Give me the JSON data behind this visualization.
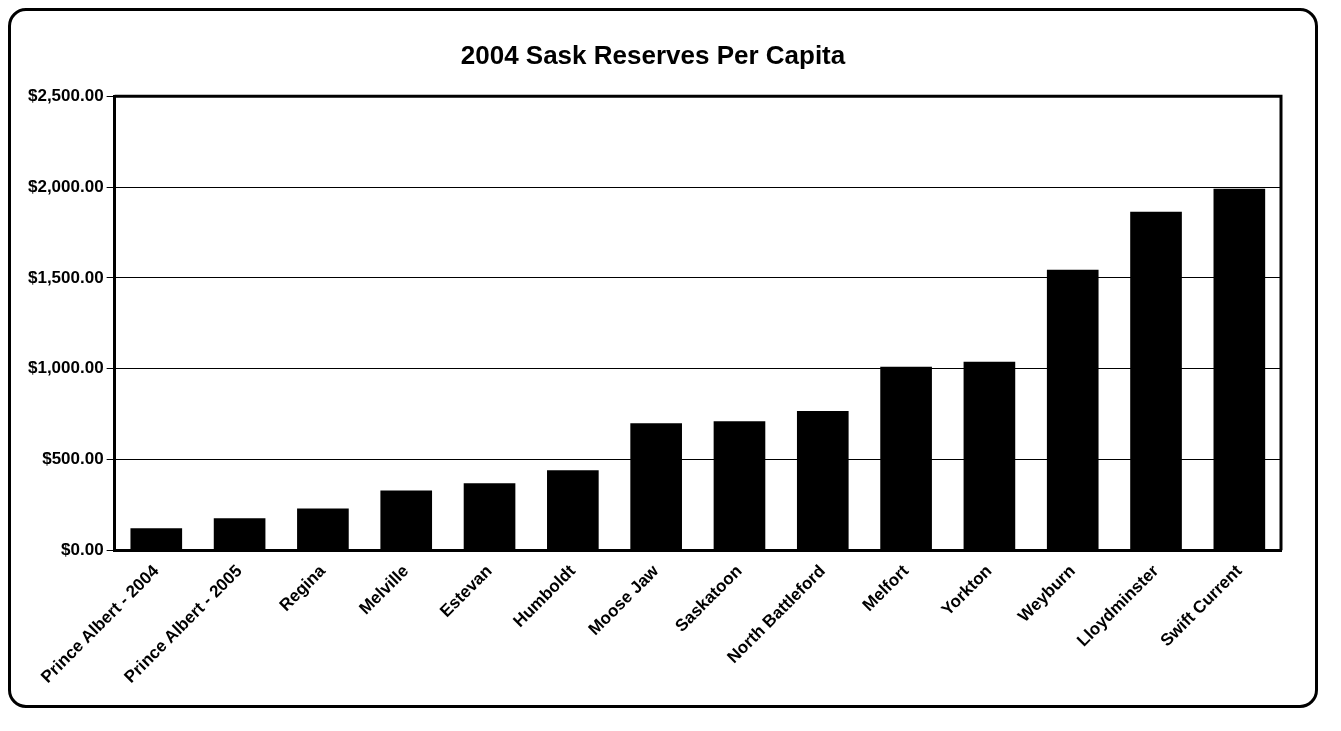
{
  "chart_data": {
    "type": "bar",
    "title": "2004 Sask Reserves Per Capita",
    "categories": [
      "Prince Albert - 2004",
      "Prince Albert - 2005",
      "Regina",
      "Melville",
      "Estevan",
      "Humboldt",
      "Moose Jaw",
      "Saskatoon",
      "North Battleford",
      "Melfort",
      "Yorkton",
      "Weyburn",
      "Lloydminster",
      "Swift Current"
    ],
    "values": [
      122,
      176,
      230,
      329,
      369,
      441,
      700,
      711,
      767,
      1010,
      1038,
      1545,
      1864,
      1990
    ],
    "color": "#000000",
    "ylim": [
      0,
      2500
    ],
    "yticks": [
      {
        "value": 0,
        "label": "$0.00"
      },
      {
        "value": 500,
        "label": "$500.00"
      },
      {
        "value": 1000,
        "label": "$1,000.00"
      },
      {
        "value": 1500,
        "label": "$1,500.00"
      },
      {
        "value": 2000,
        "label": "$2,000.00"
      },
      {
        "value": 2500,
        "label": "$2,500.00"
      }
    ],
    "grid": "y",
    "legend": false
  }
}
